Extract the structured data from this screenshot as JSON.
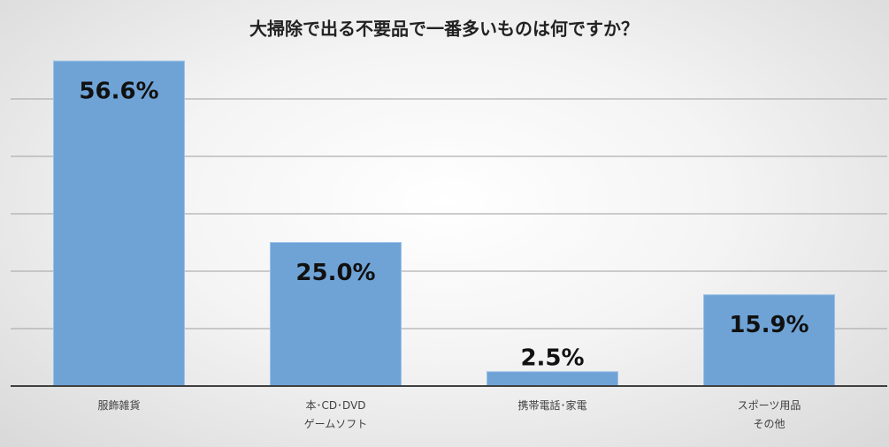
{
  "chart_data": {
    "type": "bar",
    "title": "大掃除で出る不要品で一番多いものは何ですか？",
    "categories": [
      "服飾雑貨",
      "本･CD･DVD\nゲームソフト",
      "携帯電話･家電",
      "スポーツ用品\nその他"
    ],
    "values": [
      56.6,
      25.0,
      2.5,
      15.9
    ],
    "value_labels": [
      "56.6%",
      "25.0%",
      "2.5%",
      "15.9%"
    ],
    "color": "#6fa3d6",
    "ylim": [
      0,
      60
    ],
    "yticks": [
      0,
      10,
      20,
      30,
      40,
      50
    ],
    "grid": true
  }
}
